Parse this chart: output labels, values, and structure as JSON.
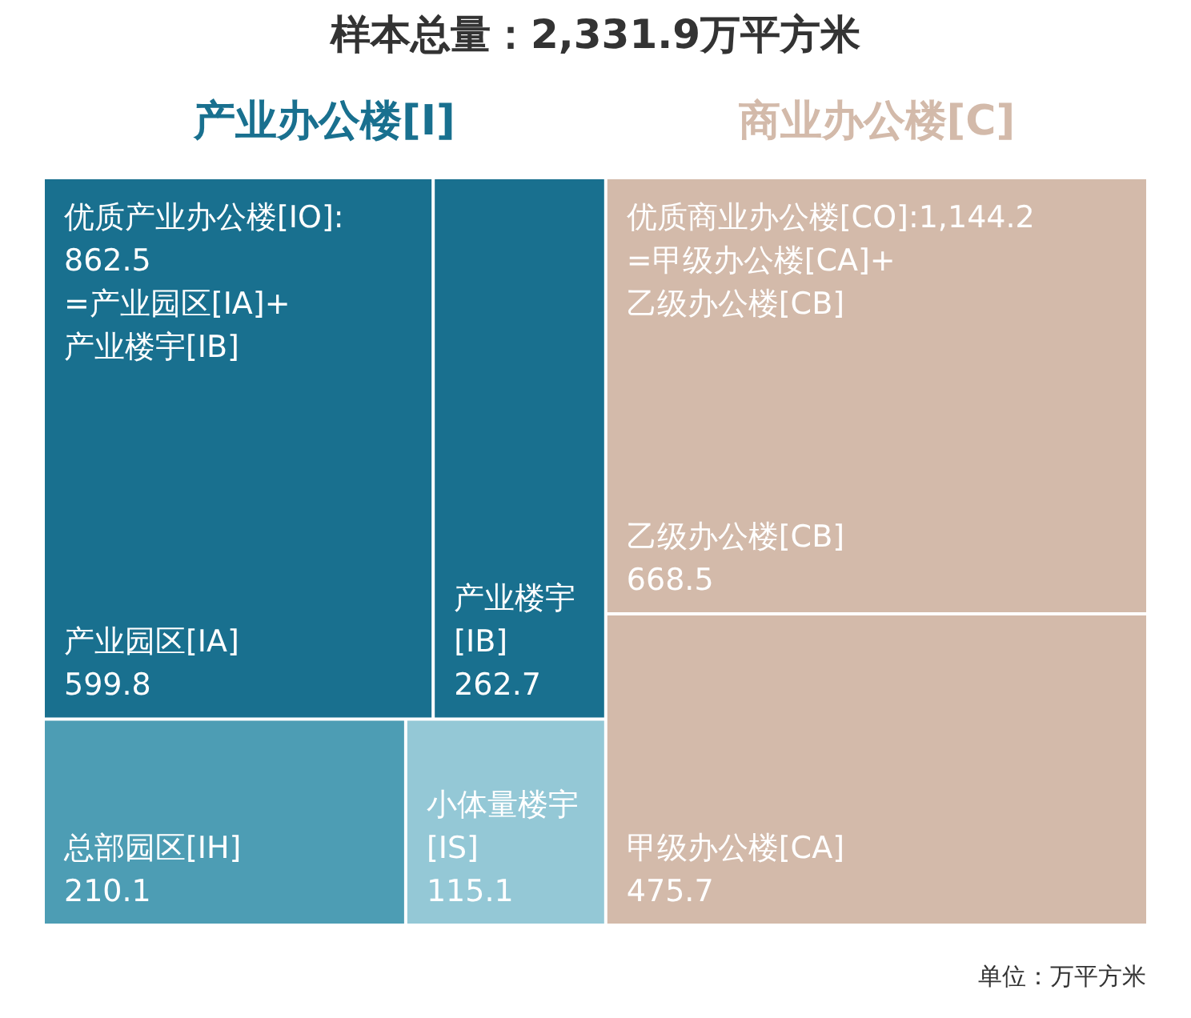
{
  "chart_data": {
    "type": "other",
    "title": "样本总量：2,331.9万平方米",
    "categories": [
      "产业园区[IA]",
      "产业楼宇[IB]",
      "总部园区[IH]",
      "小体量楼宇[IS]",
      "乙级办公楼[CB]",
      "甲级办公楼[CA]"
    ],
    "series": [
      {
        "name": "产业办公楼[I]",
        "colors": [
          "#19708f",
          "#19708f",
          "#4d9db4",
          "#94c8d6",
          null,
          null
        ],
        "values": [
          599.8,
          262.7,
          210.1,
          115.1,
          null,
          null
        ]
      },
      {
        "name": "商业办公楼[C]",
        "colors": [
          null,
          null,
          null,
          null,
          "#d3baaa",
          "#d3baaa"
        ],
        "values": [
          null,
          null,
          null,
          null,
          668.5,
          475.7
        ]
      }
    ],
    "data_labels": true,
    "annotations": [
      "优质产业办公楼[IO]:\n862.5\n=产业园区[IA]+\n产业楼宇[IB]",
      "优质商业办公楼[CO]:1,144.2\n=甲级办公楼[CA]+\n乙级办公楼[CB]",
      "单位：万平方米"
    ]
  }
}
